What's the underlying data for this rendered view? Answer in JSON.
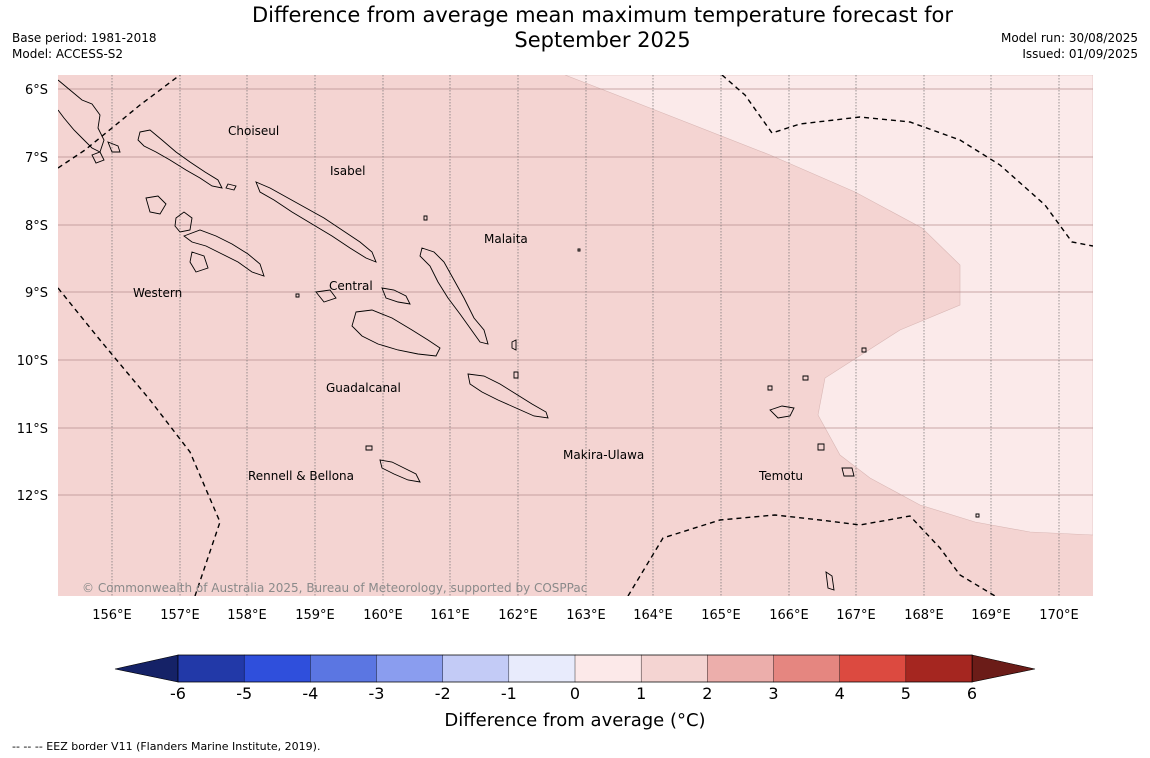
{
  "header": {
    "title_line1": "Difference from average mean maximum temperature forecast for",
    "title_line2": "September 2025",
    "base_period": "Base period: 1981-2018",
    "model": "Model: ACCESS-S2",
    "model_run": "Model run: 30/08/2025",
    "issued": "Issued: 01/09/2025"
  },
  "map": {
    "lat_labels": [
      "6°S",
      "7°S",
      "8°S",
      "9°S",
      "10°S",
      "11°S",
      "12°S"
    ],
    "lon_labels": [
      "156°E",
      "157°E",
      "158°E",
      "159°E",
      "160°E",
      "161°E",
      "162°E",
      "163°E",
      "164°E",
      "165°E",
      "166°E",
      "167°E",
      "168°E",
      "169°E",
      "170°E"
    ],
    "regions": [
      {
        "name": "Choiseul"
      },
      {
        "name": "Isabel"
      },
      {
        "name": "Malaita"
      },
      {
        "name": "Western"
      },
      {
        "name": "Central"
      },
      {
        "name": "Guadalcanal"
      },
      {
        "name": "Makira-Ulawa"
      },
      {
        "name": "Rennell & Bellona"
      },
      {
        "name": "Temotu"
      }
    ],
    "copyright": "© Commonwealth of Australia 2025, Bureau of Meteorology, supported by COSPPac",
    "fill_colors": {
      "band_1_2": "#f4d4d2",
      "band_0_1": "#fbeaea"
    }
  },
  "colorbar": {
    "title": "Difference from average (°C)",
    "ticks": [
      "-6",
      "-5",
      "-4",
      "-3",
      "-2",
      "-1",
      "0",
      "1",
      "2",
      "3",
      "4",
      "5",
      "6"
    ],
    "colors": [
      "#2239a8",
      "#2f4fdc",
      "#5b76e2",
      "#8a9def",
      "#c3cbf6",
      "#e8ebfc",
      "#fce9e9",
      "#f4d4d2",
      "#ecaeab",
      "#e58680",
      "#dc4a40",
      "#a52620"
    ],
    "under_color": "#152267",
    "over_color": "#6b1c18"
  },
  "footnote": "-- -- -- EEZ border V11 (Flanders Marine Institute, 2019)."
}
